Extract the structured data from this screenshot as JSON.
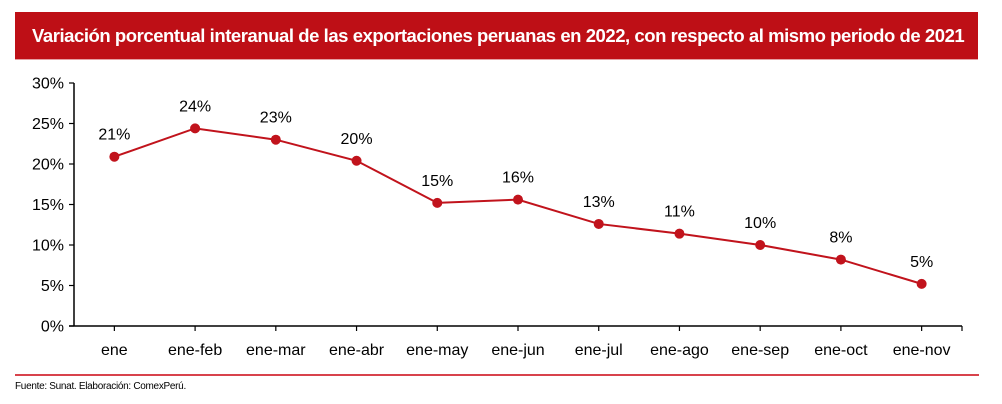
{
  "header": {
    "title": "Variación porcentual interanual de las exportaciones peruanas en 2022, con respecto al mismo periodo de 2021"
  },
  "footer": {
    "source": "Fuente: Sunat. Elaboración: ComexPerú."
  },
  "colors": {
    "title_bg": "#be0f16",
    "series": "#c1131c",
    "footer_rule": "#d8434c"
  },
  "chart_data": {
    "type": "line",
    "title": "Variación porcentual interanual de las exportaciones peruanas en 2022, con respecto al mismo periodo de 2021",
    "xlabel": "",
    "ylabel": "",
    "categories": [
      "ene",
      "ene-feb",
      "ene-mar",
      "ene-abr",
      "ene-may",
      "ene-jun",
      "ene-jul",
      "ene-ago",
      "ene-sep",
      "ene-oct",
      "ene-nov"
    ],
    "series": [
      {
        "name": "Variación porcentual interanual",
        "values": [
          20.9,
          24.4,
          23.0,
          20.4,
          15.2,
          15.6,
          12.6,
          11.4,
          10.0,
          8.2,
          5.2
        ],
        "labels": [
          "21%",
          "24%",
          "23%",
          "20%",
          "15%",
          "16%",
          "13%",
          "11%",
          "10%",
          "8%",
          "5%"
        ]
      }
    ],
    "ylim": [
      0,
      30
    ],
    "yticks": [
      0,
      5,
      10,
      15,
      20,
      25,
      30
    ],
    "ytick_labels": [
      "0%",
      "5%",
      "10%",
      "15%",
      "20%",
      "25%",
      "30%"
    ],
    "grid": false,
    "legend": "none"
  }
}
